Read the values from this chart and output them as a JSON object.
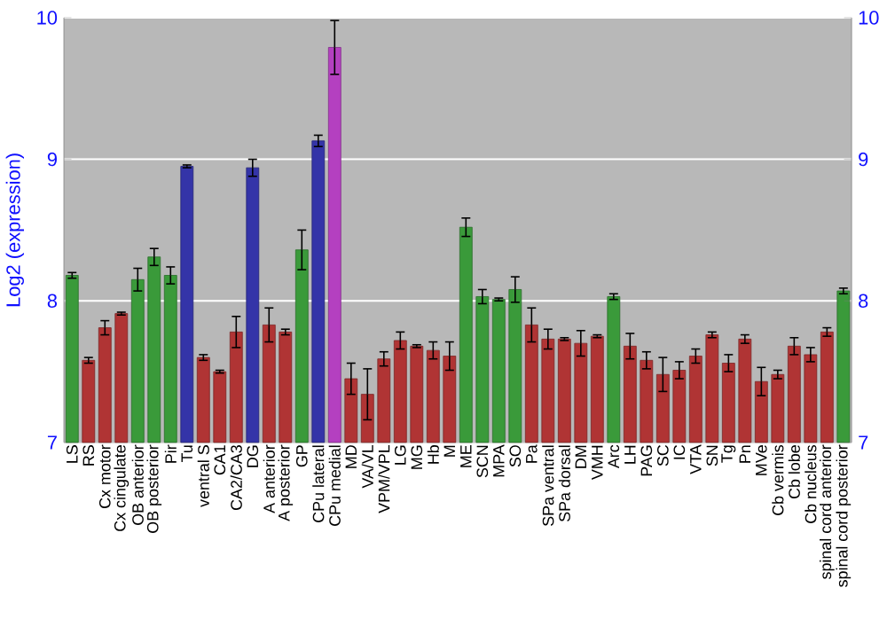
{
  "chart_data": {
    "type": "bar",
    "ylabel": "Log2 (expression)",
    "categories": [
      "LS",
      "RS",
      "Cx motor",
      "Cx cingulate",
      "OB anterior",
      "OB posterior",
      "Pir",
      "Tu",
      "ventral S",
      "CA1",
      "CA2/CA3",
      "DG",
      "A anterior",
      "A posterior",
      "GP",
      "CPu lateral",
      "CPu medial",
      "MD",
      "VA/VL",
      "VPM/VPL",
      "LG",
      "MG",
      "Hb",
      "M",
      "ME",
      "SCN",
      "MPA",
      "SO",
      "Pa",
      "SPa ventral",
      "SPa dorsal",
      "DM",
      "VMH",
      "Arc",
      "LH",
      "PAG",
      "SC",
      "IC",
      "VTA",
      "SN",
      "Tg",
      "Pn",
      "MVe",
      "Cb vermis",
      "Cb lobe",
      "Cb nucleus",
      "spinal cord anterior",
      "spinal cord posterior"
    ],
    "values": [
      8.18,
      7.58,
      7.81,
      7.91,
      8.15,
      8.31,
      8.18,
      8.95,
      7.6,
      7.5,
      7.78,
      8.94,
      7.83,
      7.78,
      8.36,
      9.13,
      9.79,
      7.45,
      7.34,
      7.59,
      7.72,
      7.68,
      7.65,
      7.61,
      8.52,
      8.03,
      8.01,
      8.08,
      7.83,
      7.73,
      7.73,
      7.7,
      7.75,
      8.03,
      7.68,
      7.58,
      7.48,
      7.51,
      7.61,
      7.76,
      7.56,
      7.73,
      7.43,
      7.48,
      7.68,
      7.62,
      7.78,
      8.07
    ],
    "errors": [
      0.02,
      0.02,
      0.05,
      0.01,
      0.08,
      0.06,
      0.06,
      0.01,
      0.02,
      0.01,
      0.11,
      0.06,
      0.12,
      0.02,
      0.14,
      0.04,
      0.19,
      0.11,
      0.18,
      0.05,
      0.06,
      0.01,
      0.06,
      0.1,
      0.065,
      0.05,
      0.01,
      0.09,
      0.12,
      0.07,
      0.01,
      0.09,
      0.01,
      0.02,
      0.09,
      0.06,
      0.12,
      0.06,
      0.05,
      0.02,
      0.06,
      0.03,
      0.1,
      0.03,
      0.06,
      0.05,
      0.03,
      0.02
    ],
    "colors": [
      "#3a9a3a",
      "#b03434",
      "#b03434",
      "#b03434",
      "#3a9a3a",
      "#3a9a3a",
      "#3a9a3a",
      "#3434a8",
      "#b03434",
      "#b03434",
      "#b03434",
      "#3434a8",
      "#b03434",
      "#b03434",
      "#3a9a3a",
      "#3434a8",
      "#b440c0",
      "#b03434",
      "#b03434",
      "#b03434",
      "#b03434",
      "#b03434",
      "#b03434",
      "#b03434",
      "#3a9a3a",
      "#3a9a3a",
      "#3a9a3a",
      "#3a9a3a",
      "#b03434",
      "#b03434",
      "#b03434",
      "#b03434",
      "#b03434",
      "#3a9a3a",
      "#b03434",
      "#b03434",
      "#b03434",
      "#b03434",
      "#b03434",
      "#b03434",
      "#b03434",
      "#b03434",
      "#b03434",
      "#b03434",
      "#b03434",
      "#b03434",
      "#b03434",
      "#3a9a3a"
    ],
    "ylim": [
      7,
      10
    ],
    "yticks": [
      7,
      8,
      9,
      10
    ],
    "y2lim": [
      7,
      10
    ],
    "y2ticks": [
      7,
      8,
      9,
      10
    ],
    "grid": "y"
  }
}
